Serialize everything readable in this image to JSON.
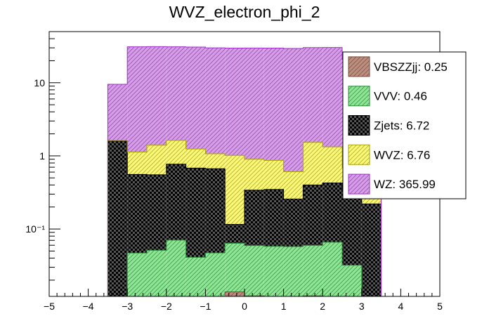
{
  "chart_data": {
    "type": "stacked-histogram",
    "title": "WVZ_electron_phi_2",
    "xlabel": "",
    "ylabel": "",
    "xlim": [
      -5,
      5
    ],
    "ylim": [
      0.012,
      50
    ],
    "y_scale": "log",
    "grid": false,
    "legend_position": "top-right",
    "bin_edges": [
      -3.5,
      -3.0,
      -2.5,
      -2.0,
      -1.5,
      -1.0,
      -0.5,
      0.0,
      0.5,
      1.0,
      1.5,
      2.0,
      2.5,
      3.0,
      3.5
    ],
    "x_ticks": [
      -5,
      -4,
      -3,
      -2,
      -1,
      0,
      1,
      2,
      3,
      4,
      5
    ],
    "y_ticks": [
      {
        "value": 0.1,
        "label": "10⁻¹"
      },
      {
        "value": 1,
        "label": "1"
      },
      {
        "value": 10,
        "label": "10"
      }
    ],
    "series": [
      {
        "name": "VBSZZjj",
        "legend": "VBSZZjj: 0.25",
        "color": "#bb8f80",
        "hatch": "#7a4a3c",
        "values": [
          0,
          0.0095,
          0.0102,
          0.0106,
          0.0,
          0.0106,
          0.0138,
          0.0122,
          0.0114,
          0.0118,
          0.0122,
          0.0114,
          0,
          0
        ]
      },
      {
        "name": "VVV",
        "legend": "VVV: 0.46",
        "color": "#8ee695",
        "hatch": "#2a8a3a",
        "values": [
          0,
          0.0375,
          0.041,
          0.06,
          0.041,
          0.0365,
          0.05,
          0.0473,
          0.0466,
          0.0457,
          0.0475,
          0.0546,
          0.032,
          0.008
        ]
      },
      {
        "name": "Zjets",
        "legend": "Zjets: 6.72",
        "color": "#555555",
        "hatch": "#000000",
        "values": [
          1.6,
          0.51,
          0.5,
          0.7,
          0.64,
          0.62,
          0.052,
          0.28,
          0.29,
          0.2,
          0.34,
          0.36,
          0.3,
          0.212
        ]
      },
      {
        "name": "WVZ",
        "legend": "WVZ: 6.76",
        "color": "#faf77a",
        "hatch": "#a6a200",
        "values": [
          0.02,
          0.57,
          0.85,
          0.86,
          0.56,
          0.4,
          0.9,
          0.56,
          0.52,
          0.35,
          1.13,
          0.9,
          0.37,
          0.045
        ]
      },
      {
        "name": "WZ",
        "legend": "WZ: 365.99",
        "color": "#d69ee6",
        "hatch": "#9b30c8",
        "values": [
          7.9,
          29.9,
          29.8,
          29.4,
          29.5,
          28.9,
          28.7,
          28.9,
          28.9,
          28.8,
          28.7,
          29.0,
          20.2,
          1.86
        ]
      }
    ]
  }
}
